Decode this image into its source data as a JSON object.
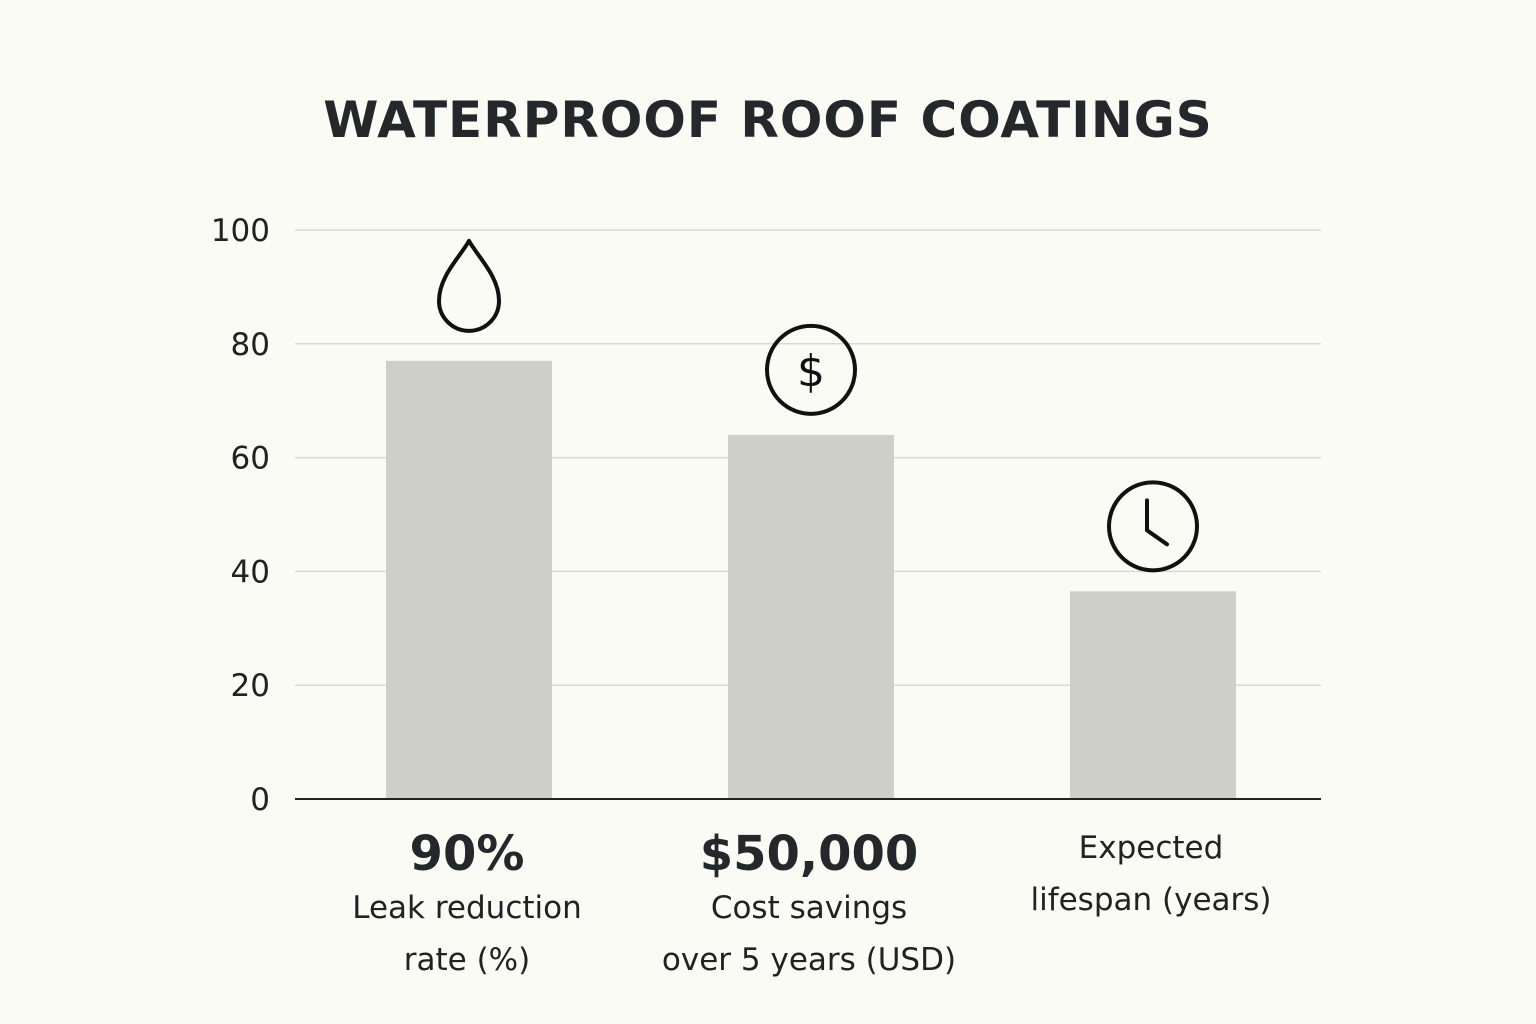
{
  "chart_data": {
    "type": "bar",
    "title": "WATERPROOF ROOF COATINGS",
    "ylim": [
      0,
      100
    ],
    "yticks": [
      "0",
      "20",
      "40",
      "60",
      "80",
      "100"
    ],
    "grid": true,
    "bar_color": "#cfcfca",
    "categories": [
      {
        "value": 77,
        "headline": "90%",
        "label_lines": [
          "Leak reduction",
          "rate (%)"
        ],
        "icon": "water-drop-icon"
      },
      {
        "value": 64,
        "headline": "$50,000",
        "label_lines": [
          "Cost savings",
          "over 5 years (USD)"
        ],
        "icon": "dollar-icon"
      },
      {
        "value": 36.5,
        "headline": "",
        "label_lines": [
          "Expected",
          "lifespan (years)"
        ],
        "icon": "clock-icon"
      }
    ]
  }
}
